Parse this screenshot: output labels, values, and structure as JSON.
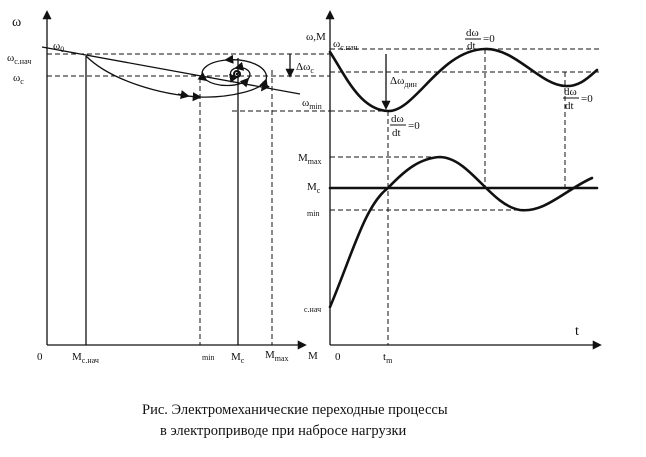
{
  "left_plot": {
    "y_axis": "ω",
    "x_axis": "M",
    "origin": "0",
    "omega_0": "ω",
    "omega_0_sub": "0",
    "omega_c_nach": "ω",
    "omega_c_nach_sub": "c.нач",
    "omega_c": "ω",
    "omega_c_sub": "c",
    "x_ticks": {
      "m_c_nach": "M",
      "m_c_nach_sub": "c.нач",
      "min": "min",
      "m_c": "M",
      "m_c_sub": "c",
      "m_max": "M",
      "m_max_sub": "max"
    }
  },
  "right_plot": {
    "y_axis": "ω,M",
    "t_axis": "t",
    "origin": "0",
    "t_m": "t",
    "t_m_sub": "m",
    "omega_c_nach": "ω",
    "omega_c_nach_sub": "c.нач",
    "delta_omega_c": "Δω",
    "delta_omega_c_sub": "c",
    "delta_omega_din": "Δω",
    "delta_omega_din_sub": "дин",
    "omega_min": "ω",
    "omega_min_sub": "min",
    "deriv_top": "dω",
    "deriv_bottom": "dt",
    "deriv_eq": "=0",
    "m_max": "M",
    "m_max_sub": "max",
    "m_c": "M",
    "m_c_sub": "c",
    "min": "min",
    "c_nach": "c.нач"
  },
  "caption": {
    "line1": "Рис. Электромеханические  переходные процессы",
    "line2": "в электроприводе при набросе нагрузки"
  }
}
